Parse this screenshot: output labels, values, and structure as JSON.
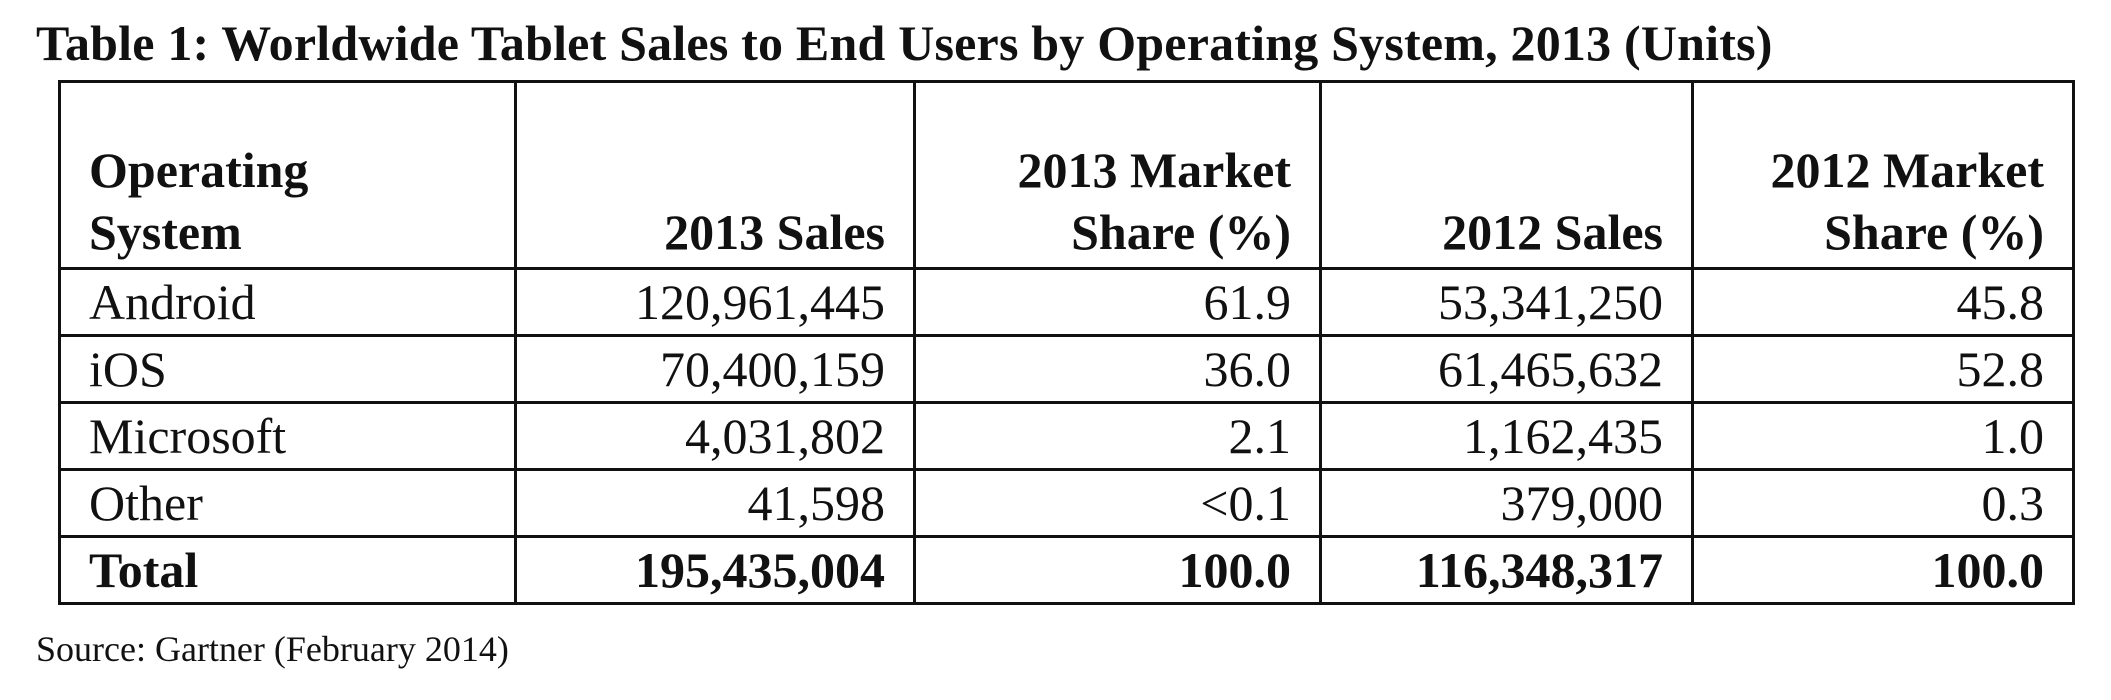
{
  "caption": "Table 1: Worldwide Tablet Sales to End Users by Operating System, 2013 (Units)",
  "table": {
    "headers": [
      {
        "line1": "Operating",
        "line2": "System"
      },
      {
        "line1": "",
        "line2": "2013 Sales"
      },
      {
        "line1": "2013 Market",
        "line2": "Share (%)"
      },
      {
        "line1": "",
        "line2": "2012 Sales"
      },
      {
        "line1": "2012 Market",
        "line2": "Share (%)"
      }
    ],
    "rows": [
      {
        "os": "Android",
        "sales_2013": "120,961,445",
        "share_2013": "61.9",
        "sales_2012": "53,341,250",
        "share_2012": "45.8"
      },
      {
        "os": "iOS",
        "sales_2013": "70,400,159",
        "share_2013": "36.0",
        "sales_2012": "61,465,632",
        "share_2012": "52.8"
      },
      {
        "os": "Microsoft",
        "sales_2013": "4,031,802",
        "share_2013": "2.1",
        "sales_2012": "1,162,435",
        "share_2012": "1.0"
      },
      {
        "os": "Other",
        "sales_2013": "41,598",
        "share_2013": "<0.1",
        "sales_2012": "379,000",
        "share_2012": "0.3"
      }
    ],
    "total": {
      "os": "Total",
      "sales_2013": "195,435,004",
      "share_2013": "100.0",
      "sales_2012": "116,348,317",
      "share_2012": "100.0"
    }
  },
  "source": "Source: Gartner (February 2014)"
}
